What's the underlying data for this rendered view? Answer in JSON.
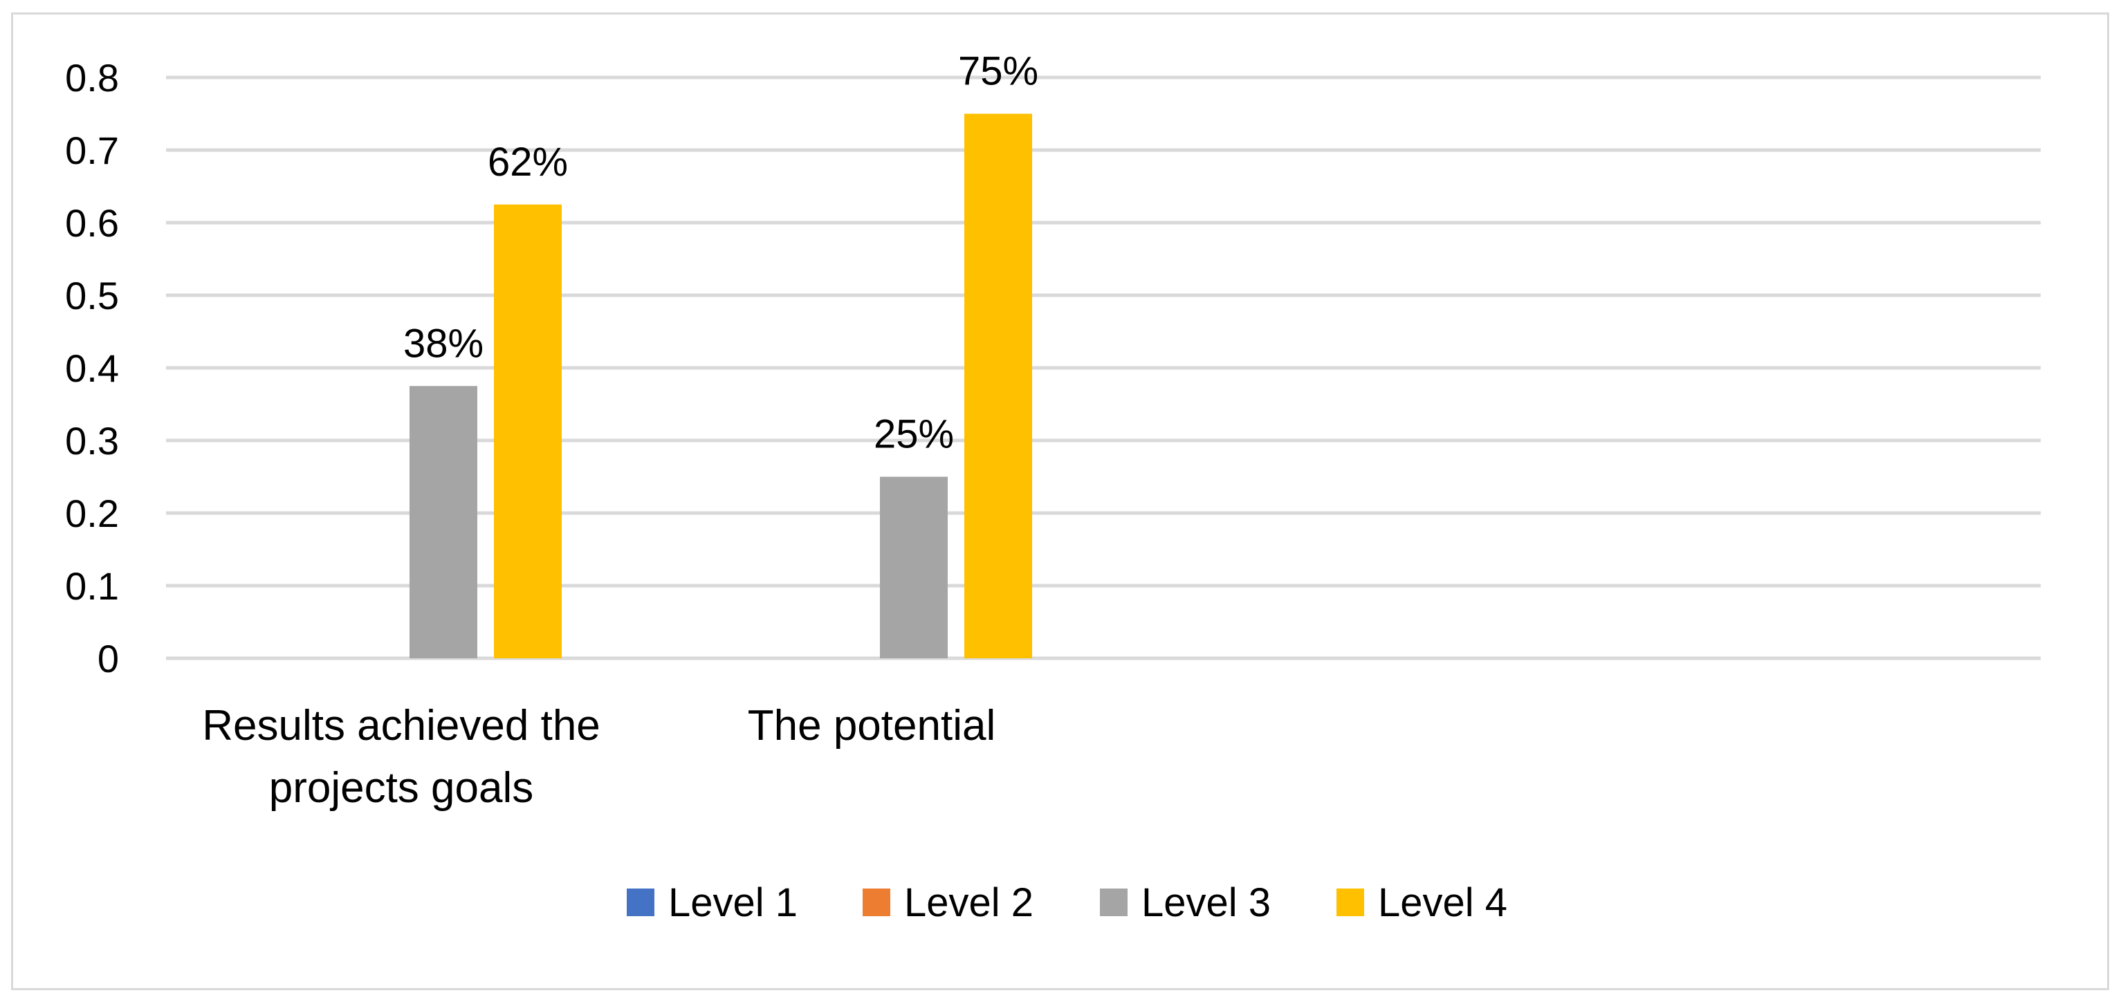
{
  "chart_data": {
    "type": "bar",
    "title": "",
    "xlabel": "",
    "ylabel": "",
    "categories": [
      [
        "Results achieved the",
        "projects goals"
      ],
      [
        "The potential"
      ]
    ],
    "series": [
      {
        "name": "Level 1",
        "color": "#4472c4",
        "values": [
          null,
          null
        ],
        "labels": [
          null,
          null
        ]
      },
      {
        "name": "Level 2",
        "color": "#ed7d31",
        "values": [
          null,
          null
        ],
        "labels": [
          null,
          null
        ]
      },
      {
        "name": "Level 3",
        "color": "#a5a5a5",
        "values": [
          0.375,
          0.25
        ],
        "labels": [
          "38%",
          "25%"
        ]
      },
      {
        "name": "Level 4",
        "color": "#ffc000",
        "values": [
          0.625,
          0.75
        ],
        "labels": [
          "62%",
          "75%"
        ]
      }
    ],
    "yticks": [
      "0",
      "0.1",
      "0.2",
      "0.3",
      "0.4",
      "0.5",
      "0.6",
      "0.7",
      "0.8"
    ],
    "ylim": [
      0,
      0.8
    ],
    "grid": true,
    "gridColor": "#d9d9d9",
    "legend_position": "bottom"
  }
}
